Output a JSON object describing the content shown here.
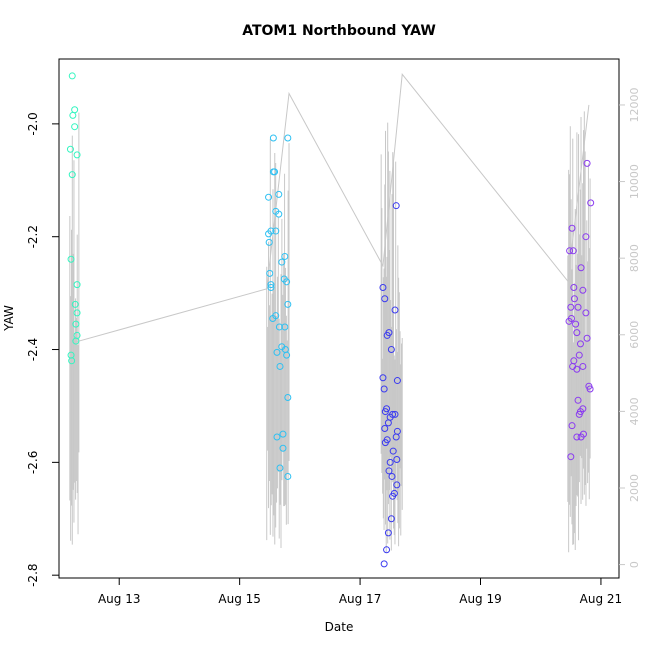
{
  "chart_data": {
    "type": "scatter",
    "title": "ATOM1 Northbound YAW",
    "xlabel": "Date",
    "ylabel": "YAW",
    "x_ticks": [
      "Aug 13",
      "Aug 15",
      "Aug 17",
      "Aug 19",
      "Aug 21"
    ],
    "x_tick_days": [
      13,
      15,
      17,
      19,
      21
    ],
    "xlim_days": [
      12.0,
      21.3
    ],
    "y_ticks": [
      "-2.8",
      "-2.6",
      "-2.4",
      "-2.2",
      "-2.0"
    ],
    "y_tick_values": [
      -2.8,
      -2.6,
      -2.4,
      -2.2,
      -2.0
    ],
    "ylim": [
      -2.805,
      -1.885
    ],
    "y2_ticks": [
      "0",
      "2000",
      "4000",
      "6000",
      "8000",
      "10000",
      "12000"
    ],
    "y2_tick_values": [
      0,
      2000,
      4000,
      6000,
      8000,
      10000,
      12000
    ],
    "y2lim": [
      -350,
      13200
    ],
    "grid": false,
    "point_colors": {
      "g1": "#33f5c0",
      "g2": "#2ec0f2",
      "g3": "#3b3bf0",
      "g4": "#8a3bf0"
    },
    "line_color": "#c8c8c8",
    "series": [
      {
        "group": "g1",
        "points": [
          [
            12.22,
            -1.915
          ],
          [
            12.26,
            -1.975
          ],
          [
            12.23,
            -1.985
          ],
          [
            12.26,
            -2.005
          ],
          [
            12.19,
            -2.045
          ],
          [
            12.3,
            -2.055
          ],
          [
            12.22,
            -2.09
          ],
          [
            12.2,
            -2.24
          ],
          [
            12.3,
            -2.285
          ],
          [
            12.27,
            -2.32
          ],
          [
            12.3,
            -2.335
          ],
          [
            12.28,
            -2.355
          ],
          [
            12.3,
            -2.375
          ],
          [
            12.28,
            -2.385
          ],
          [
            12.2,
            -2.41
          ],
          [
            12.21,
            -2.42
          ]
        ]
      },
      {
        "group": "g2",
        "points": [
          [
            15.56,
            -2.025
          ],
          [
            15.8,
            -2.025
          ],
          [
            15.58,
            -2.085
          ],
          [
            15.56,
            -2.085
          ],
          [
            15.65,
            -2.125
          ],
          [
            15.48,
            -2.13
          ],
          [
            15.6,
            -2.155
          ],
          [
            15.65,
            -2.16
          ],
          [
            15.52,
            -2.19
          ],
          [
            15.6,
            -2.19
          ],
          [
            15.48,
            -2.195
          ],
          [
            15.49,
            -2.21
          ],
          [
            15.75,
            -2.235
          ],
          [
            15.7,
            -2.245
          ],
          [
            15.5,
            -2.265
          ],
          [
            15.74,
            -2.275
          ],
          [
            15.78,
            -2.28
          ],
          [
            15.52,
            -2.285
          ],
          [
            15.52,
            -2.29
          ],
          [
            15.8,
            -2.32
          ],
          [
            15.6,
            -2.34
          ],
          [
            15.55,
            -2.345
          ],
          [
            15.75,
            -2.36
          ],
          [
            15.66,
            -2.36
          ],
          [
            15.7,
            -2.395
          ],
          [
            15.76,
            -2.4
          ],
          [
            15.62,
            -2.405
          ],
          [
            15.78,
            -2.41
          ],
          [
            15.67,
            -2.43
          ],
          [
            15.8,
            -2.485
          ],
          [
            15.72,
            -2.55
          ],
          [
            15.62,
            -2.555
          ],
          [
            15.72,
            -2.575
          ],
          [
            15.67,
            -2.61
          ],
          [
            15.8,
            -2.625
          ]
        ]
      },
      {
        "group": "g3",
        "points": [
          [
            17.6,
            -2.145
          ],
          [
            17.38,
            -2.29
          ],
          [
            17.41,
            -2.31
          ],
          [
            17.58,
            -2.33
          ],
          [
            17.48,
            -2.37
          ],
          [
            17.45,
            -2.375
          ],
          [
            17.52,
            -2.4
          ],
          [
            17.38,
            -2.45
          ],
          [
            17.62,
            -2.455
          ],
          [
            17.4,
            -2.47
          ],
          [
            17.44,
            -2.505
          ],
          [
            17.42,
            -2.51
          ],
          [
            17.54,
            -2.515
          ],
          [
            17.58,
            -2.515
          ],
          [
            17.5,
            -2.52
          ],
          [
            17.47,
            -2.53
          ],
          [
            17.41,
            -2.54
          ],
          [
            17.62,
            -2.545
          ],
          [
            17.6,
            -2.555
          ],
          [
            17.45,
            -2.56
          ],
          [
            17.42,
            -2.565
          ],
          [
            17.55,
            -2.58
          ],
          [
            17.61,
            -2.595
          ],
          [
            17.5,
            -2.6
          ],
          [
            17.48,
            -2.615
          ],
          [
            17.53,
            -2.625
          ],
          [
            17.61,
            -2.64
          ],
          [
            17.57,
            -2.655
          ],
          [
            17.54,
            -2.66
          ],
          [
            17.52,
            -2.7
          ],
          [
            17.47,
            -2.725
          ],
          [
            17.44,
            -2.755
          ],
          [
            17.4,
            -2.78
          ]
        ]
      },
      {
        "group": "g4",
        "points": [
          [
            20.77,
            -2.07
          ],
          [
            20.83,
            -2.14
          ],
          [
            20.52,
            -2.185
          ],
          [
            20.75,
            -2.2
          ],
          [
            20.54,
            -2.225
          ],
          [
            20.48,
            -2.225
          ],
          [
            20.67,
            -2.255
          ],
          [
            20.55,
            -2.29
          ],
          [
            20.7,
            -2.295
          ],
          [
            20.56,
            -2.31
          ],
          [
            20.62,
            -2.325
          ],
          [
            20.5,
            -2.325
          ],
          [
            20.75,
            -2.335
          ],
          [
            20.51,
            -2.345
          ],
          [
            20.47,
            -2.35
          ],
          [
            20.58,
            -2.355
          ],
          [
            20.6,
            -2.37
          ],
          [
            20.77,
            -2.38
          ],
          [
            20.66,
            -2.39
          ],
          [
            20.64,
            -2.41
          ],
          [
            20.55,
            -2.42
          ],
          [
            20.53,
            -2.43
          ],
          [
            20.7,
            -2.43
          ],
          [
            20.6,
            -2.435
          ],
          [
            20.8,
            -2.465
          ],
          [
            20.82,
            -2.47
          ],
          [
            20.62,
            -2.49
          ],
          [
            20.7,
            -2.505
          ],
          [
            20.66,
            -2.51
          ],
          [
            20.64,
            -2.515
          ],
          [
            20.52,
            -2.535
          ],
          [
            20.71,
            -2.55
          ],
          [
            20.67,
            -2.555
          ],
          [
            20.6,
            -2.555
          ],
          [
            20.5,
            -2.59
          ]
        ]
      }
    ],
    "overlay_line": [
      [
        12.25,
        5800
      ],
      [
        15.45,
        7200
      ],
      [
        15.82,
        12300
      ],
      [
        17.38,
        7800
      ],
      [
        17.7,
        12800
      ],
      [
        20.45,
        7400
      ],
      [
        20.8,
        12000
      ]
    ],
    "overlay_clusters": [
      {
        "x_start": 12.18,
        "x_end": 12.33,
        "low": 300,
        "high": 12000,
        "count": 12
      },
      {
        "x_start": 15.45,
        "x_end": 15.82,
        "low": 300,
        "high": 11200,
        "count": 26
      },
      {
        "x_start": 17.35,
        "x_end": 17.7,
        "low": 300,
        "high": 11600,
        "count": 30
      },
      {
        "x_start": 20.45,
        "x_end": 20.82,
        "low": 300,
        "high": 11900,
        "count": 28
      }
    ]
  }
}
